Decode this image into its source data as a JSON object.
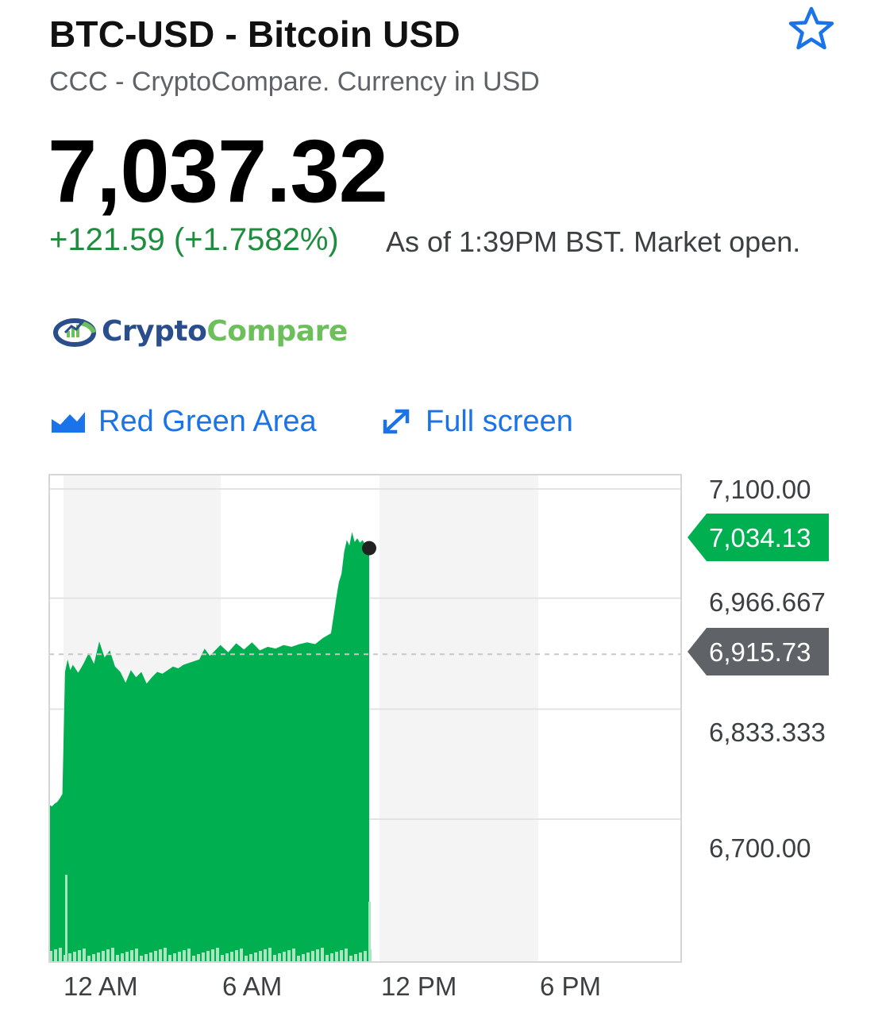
{
  "header": {
    "title": "BTC-USD - Bitcoin USD",
    "subtitle": "CCC - CryptoCompare. Currency in USD",
    "price": "7,037.32",
    "change": "+121.59 (+1.7582%)",
    "as_of": "As of 1:39PM BST. Market open."
  },
  "logo": {
    "word1": "Crypto",
    "word2": "Compare"
  },
  "controls": {
    "chart_type": "Red Green Area",
    "fullscreen": "Full screen"
  },
  "colors": {
    "accent": "#1a73e8",
    "up": "#00b050",
    "up_text": "#1e8e3e",
    "prev_close_tag": "#5f6368"
  },
  "chart_data": {
    "type": "area",
    "x_ticks": [
      "12 AM",
      "6 AM",
      "12 PM",
      "6 PM"
    ],
    "y_ticks": [
      "7,100.00",
      "6,966.667",
      "6,833.333",
      "6,700.00"
    ],
    "ylim": [
      6600,
      7100
    ],
    "current_label": "7,034.13",
    "current_value": 7034.13,
    "prev_close_label": "6,915.73",
    "prev_close_value": 6915.73,
    "x_unit": "hours",
    "x_range": [
      -0.5,
      23.5
    ],
    "x": [
      -0.5,
      -0.4,
      -0.3,
      -0.2,
      -0.1,
      0,
      0.1,
      0.2,
      0.3,
      0.4,
      0.6,
      0.8,
      1.0,
      1.2,
      1.4,
      1.6,
      1.8,
      2.0,
      2.2,
      2.4,
      2.6,
      2.8,
      3.0,
      3.2,
      3.4,
      3.6,
      3.8,
      4.0,
      4.2,
      4.4,
      4.6,
      4.8,
      5.0,
      5.2,
      5.4,
      5.6,
      5.8,
      6.0,
      6.3,
      6.6,
      6.9,
      7.2,
      7.5,
      7.8,
      8.1,
      8.4,
      8.7,
      9.0,
      9.3,
      9.6,
      9.9,
      10.2,
      10.4,
      10.5,
      10.6,
      10.7,
      10.8,
      10.9,
      11.0,
      11.1,
      11.2,
      11.3,
      11.4,
      11.5,
      11.6,
      11.65
    ],
    "values": [
      6748,
      6746,
      6749,
      6751,
      6755,
      6760,
      6896,
      6910,
      6898,
      6904,
      6895,
      6905,
      6917,
      6905,
      6930,
      6912,
      6920,
      6902,
      6896,
      6884,
      6898,
      6890,
      6896,
      6883,
      6890,
      6896,
      6894,
      6898,
      6902,
      6900,
      6904,
      6906,
      6908,
      6910,
      6922,
      6914,
      6920,
      6926,
      6918,
      6928,
      6921,
      6929,
      6920,
      6924,
      6922,
      6926,
      6924,
      6927,
      6929,
      6927,
      6934,
      6939,
      6978,
      6996,
      7005,
      7030,
      7043,
      7037,
      7052,
      7041,
      7045,
      7040,
      7043,
      7038,
      7042,
      7034
    ]
  }
}
